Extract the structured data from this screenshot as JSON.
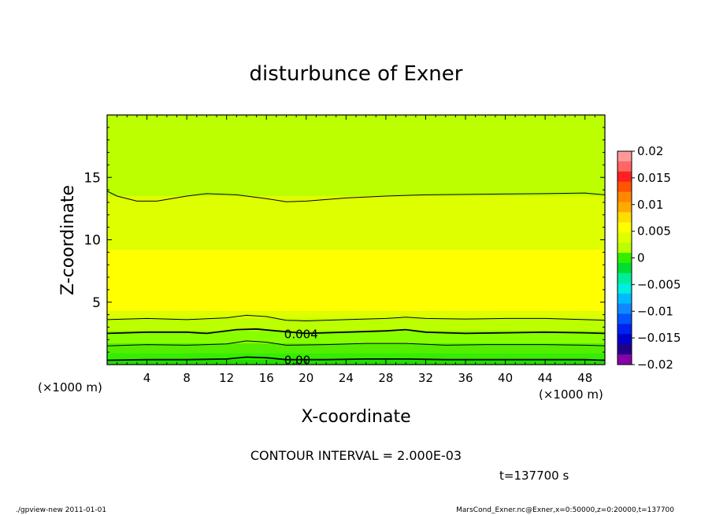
{
  "chart_data": {
    "type": "heatmap",
    "title": "disturbunce of Exner",
    "xlabel": "X-coordinate",
    "ylabel": "Z-coordinate",
    "x_unit_left": "(×1000 m)",
    "x_unit_right": "(×1000 m)",
    "xlim": [
      0,
      50
    ],
    "ylim": [
      0,
      20
    ],
    "x_ticks": [
      4,
      8,
      12,
      16,
      20,
      24,
      28,
      32,
      36,
      40,
      44,
      48
    ],
    "y_ticks": [
      5,
      10,
      15
    ],
    "contour_interval_text": "CONTOUR INTERVAL = 2.000E-03",
    "time_text": "t=137700 s",
    "footer_left": "./gpview-new   2011-01-01",
    "footer_right": "MarsCond_Exner.nc@Exner,x=0:50000,z=0:20000,t=137700",
    "colorbar": {
      "levels": [
        0.02,
        0.015,
        0.01,
        0.005,
        0,
        -0.005,
        -0.01,
        -0.015,
        -0.02
      ],
      "labels": [
        "0.02",
        "0.015",
        "0.01",
        "0.005",
        "0",
        "−0.005",
        "−0.01",
        "−0.015",
        "−0.02"
      ],
      "colors": [
        "#ff9999",
        "#ff6666",
        "#ff2020",
        "#ff5500",
        "#ff8800",
        "#ffaa00",
        "#ffdd00",
        "#ffff00",
        "#ddff00",
        "#bbff00",
        "#33ee00",
        "#00dd33",
        "#00ee99",
        "#00eedd",
        "#00bbff",
        "#1188ff",
        "#0055ff",
        "#0022ee",
        "#0000cc",
        "#220088",
        "#8800aa"
      ]
    },
    "bands": [
      {
        "z_top": 20,
        "value_range": "0.006–0.008",
        "color": "#bbff00"
      },
      {
        "z_top": 13.5,
        "value_range": "0.006–0.008",
        "color": "#ddff00"
      },
      {
        "z_top": 9.2,
        "value_range": "0.007",
        "color": "#ffff00"
      },
      {
        "z_top": 4.3,
        "value_range": "0.006",
        "color": "#ddff00"
      },
      {
        "z_top": 3.7,
        "value_range": "0.005",
        "color": "#bbff00"
      },
      {
        "z_top": 2.7,
        "value_range": "0.004",
        "color": "#88ff00"
      },
      {
        "z_top": 1.7,
        "value_range": "0.002",
        "color": "#55ee00"
      },
      {
        "z_top": 0.9,
        "value_range": "0.001",
        "color": "#33ee00"
      },
      {
        "z_top": 0.4,
        "value_range": "0.000",
        "color": "#22dd00"
      }
    ],
    "contours": [
      {
        "level": 0.006,
        "points": [
          [
            0,
            13.9
          ],
          [
            1,
            13.5
          ],
          [
            3,
            13.1
          ],
          [
            5,
            13.1
          ],
          [
            8,
            13.5
          ],
          [
            10,
            13.7
          ],
          [
            13,
            13.6
          ],
          [
            16,
            13.3
          ],
          [
            18,
            13.05
          ],
          [
            20,
            13.1
          ],
          [
            24,
            13.35
          ],
          [
            28,
            13.5
          ],
          [
            32,
            13.6
          ],
          [
            38,
            13.65
          ],
          [
            44,
            13.7
          ],
          [
            48,
            13.75
          ],
          [
            50,
            13.6
          ]
        ],
        "label": ""
      },
      {
        "level": 0.006,
        "points": [
          [
            0,
            3.6
          ],
          [
            4,
            3.7
          ],
          [
            8,
            3.6
          ],
          [
            12,
            3.75
          ],
          [
            14,
            3.95
          ],
          [
            16,
            3.85
          ],
          [
            18,
            3.55
          ],
          [
            20,
            3.5
          ],
          [
            24,
            3.6
          ],
          [
            28,
            3.7
          ],
          [
            30,
            3.8
          ],
          [
            32,
            3.7
          ],
          [
            36,
            3.65
          ],
          [
            40,
            3.7
          ],
          [
            44,
            3.7
          ],
          [
            48,
            3.6
          ],
          [
            50,
            3.55
          ]
        ],
        "label": ""
      },
      {
        "level": 0.004,
        "points": [
          [
            0,
            2.5
          ],
          [
            4,
            2.6
          ],
          [
            8,
            2.6
          ],
          [
            10,
            2.5
          ],
          [
            13,
            2.8
          ],
          [
            15,
            2.85
          ],
          [
            17,
            2.7
          ],
          [
            20,
            2.5
          ],
          [
            24,
            2.6
          ],
          [
            28,
            2.7
          ],
          [
            30,
            2.8
          ],
          [
            32,
            2.6
          ],
          [
            36,
            2.5
          ],
          [
            40,
            2.55
          ],
          [
            44,
            2.6
          ],
          [
            48,
            2.55
          ],
          [
            50,
            2.5
          ]
        ],
        "label": "0.004"
      },
      {
        "level": 0.002,
        "points": [
          [
            0,
            1.5
          ],
          [
            4,
            1.6
          ],
          [
            8,
            1.55
          ],
          [
            12,
            1.65
          ],
          [
            14,
            1.9
          ],
          [
            16,
            1.8
          ],
          [
            18,
            1.55
          ],
          [
            22,
            1.6
          ],
          [
            26,
            1.7
          ],
          [
            30,
            1.7
          ],
          [
            34,
            1.55
          ],
          [
            38,
            1.6
          ],
          [
            44,
            1.6
          ],
          [
            48,
            1.55
          ],
          [
            50,
            1.5
          ]
        ],
        "label": ""
      },
      {
        "level": 0.0,
        "points": [
          [
            0,
            0.35
          ],
          [
            4,
            0.4
          ],
          [
            8,
            0.4
          ],
          [
            12,
            0.45
          ],
          [
            14,
            0.6
          ],
          [
            16,
            0.55
          ],
          [
            18,
            0.4
          ],
          [
            22,
            0.4
          ],
          [
            26,
            0.45
          ],
          [
            30,
            0.45
          ],
          [
            34,
            0.4
          ],
          [
            40,
            0.4
          ],
          [
            44,
            0.4
          ],
          [
            48,
            0.4
          ],
          [
            50,
            0.35
          ]
        ],
        "label": "0.00"
      }
    ]
  }
}
